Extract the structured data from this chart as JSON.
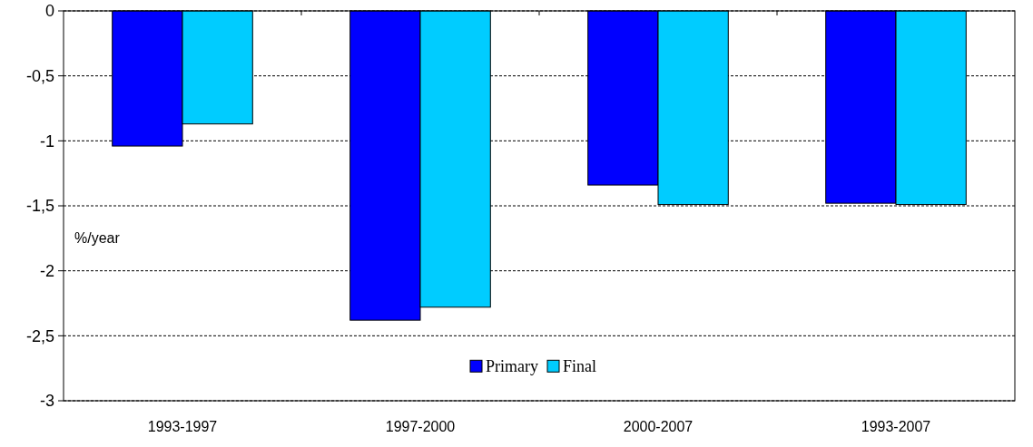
{
  "chart_data": {
    "type": "bar",
    "ylabel": "%/year",
    "categories": [
      "1993-1997",
      "1997-2000",
      "2000-2007",
      "1993-2007"
    ],
    "series": [
      {
        "name": "Primary",
        "color": "#0000ff",
        "values": [
          -1.04,
          -2.38,
          -1.34,
          -1.48
        ]
      },
      {
        "name": "Final",
        "color": "#00ccff",
        "values": [
          -0.87,
          -2.28,
          -1.49,
          -1.49
        ]
      }
    ],
    "ylim": [
      -3,
      0
    ],
    "yticks": [
      {
        "value": -3,
        "label": "-3"
      },
      {
        "value": -2.5,
        "label": "-2,5"
      },
      {
        "value": -2,
        "label": "-2"
      },
      {
        "value": -1.5,
        "label": "-1,5"
      },
      {
        "value": -1,
        "label": "-1"
      },
      {
        "value": -0.5,
        "label": "-0,5"
      },
      {
        "value": 0,
        "label": "0"
      }
    ],
    "grid": "y",
    "legend": "bottom"
  }
}
